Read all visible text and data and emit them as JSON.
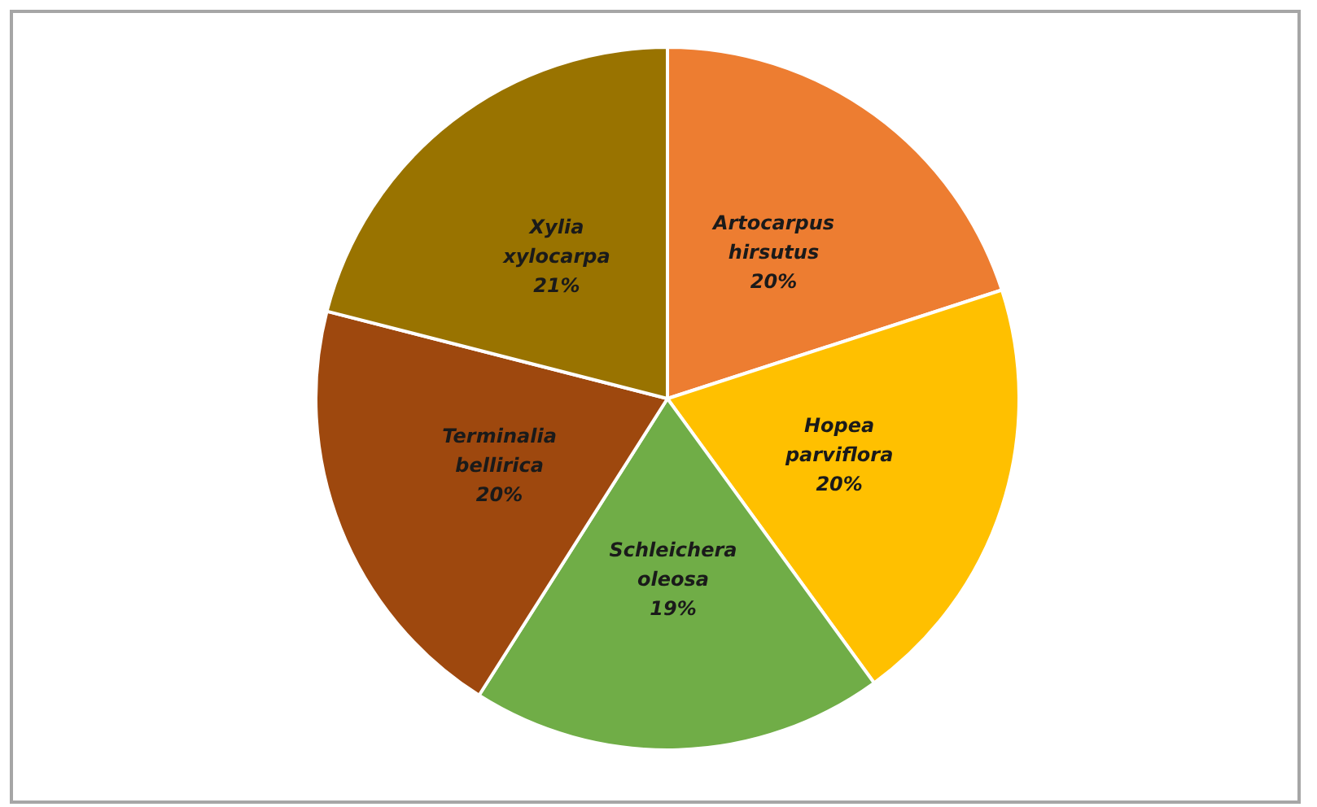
{
  "chart_data": {
    "type": "pie",
    "categories": [
      "Artocarpus hirsutus",
      "Hopea parviflora",
      "Schleichera oleosa",
      "Terminalia bellirica",
      "Xylia xylocarpa"
    ],
    "values": [
      20,
      20,
      19,
      20,
      21
    ],
    "value_labels": [
      "20%",
      "20%",
      "19%",
      "20%",
      "21%"
    ],
    "colors": [
      "#ed7d31",
      "#ffc000",
      "#70ad47",
      "#9e480e",
      "#997300"
    ],
    "legend": false
  }
}
